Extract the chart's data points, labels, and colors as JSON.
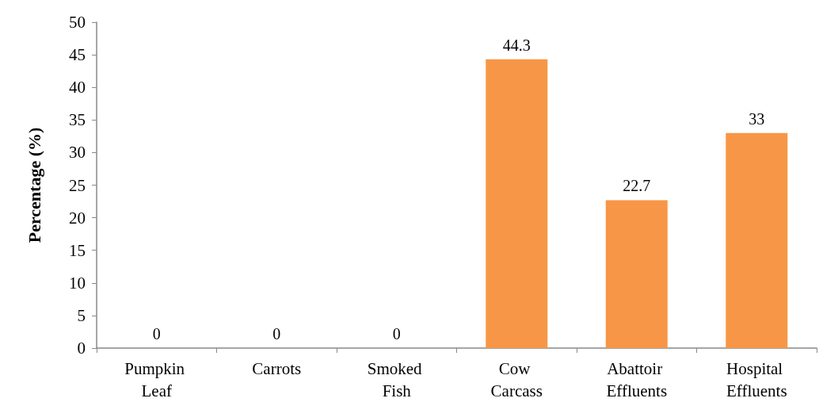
{
  "chart_data": {
    "type": "bar",
    "ylabel": "Percentage (%)",
    "categories": [
      "Pumpkin Leaf",
      "Carrots",
      "Smoked Fish",
      "Cow Carcass",
      "Abattoir Effluents",
      "Hospital Effluents"
    ],
    "values": [
      0,
      0,
      0,
      44.3,
      22.7,
      33
    ],
    "color": "#f79646",
    "ylim": [
      0,
      50
    ],
    "yticks": [
      0,
      5,
      10,
      15,
      20,
      25,
      30,
      35,
      40,
      45,
      50
    ],
    "grid": false,
    "data_labels": true
  }
}
